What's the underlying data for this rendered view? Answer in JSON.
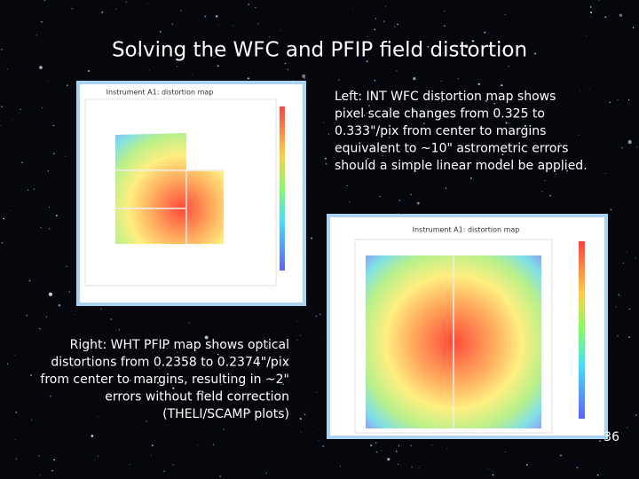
{
  "title": "Solving the WFC and PFIP field distortion",
  "left_caption": {
    "lines": [
      "Left: INT WFC distortion map shows",
      "pixel scale changes from 0.325 to",
      "0.333\"/pix  from center to margins",
      "equivalent to ~10\" astrometric errors",
      "should a simple linear model be applied."
    ]
  },
  "right_caption": {
    "lines": [
      "Right: WHT PFIP map shows optical",
      "distortions from 0.2358 to 0.2374\"/pix",
      "from center to margins, resulting in ~2\"",
      "errors without field correction",
      "(THELI/SCAMP plots)"
    ]
  },
  "figures": [
    {
      "title": "Instrument A1: distortion map"
    },
    {
      "title": "Instrument A1: distortion map"
    }
  ],
  "page_number": 36
}
